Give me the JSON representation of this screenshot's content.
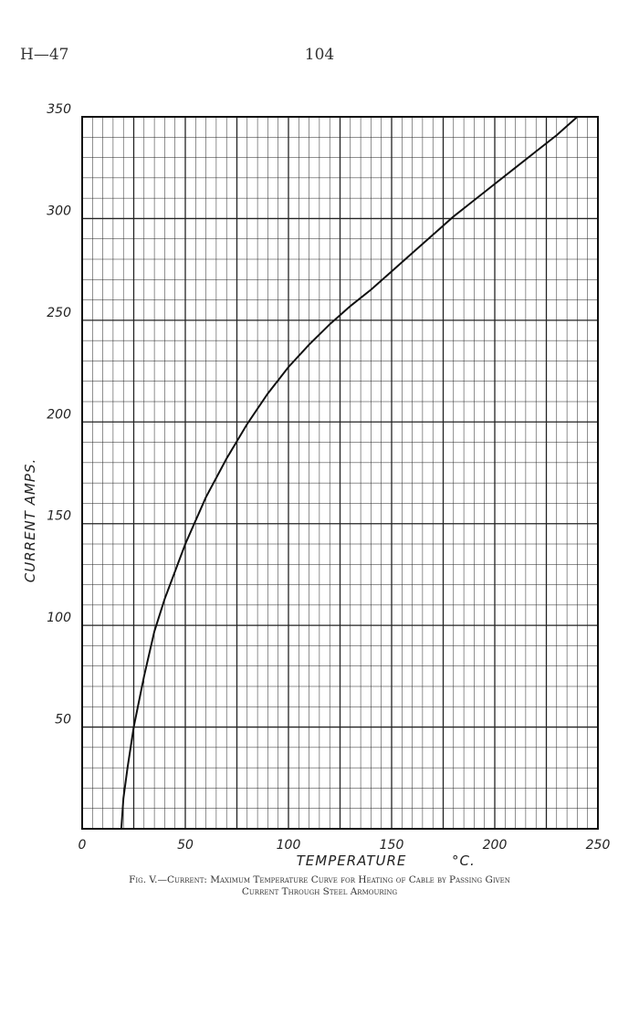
{
  "page": {
    "header_left": "H—47",
    "page_number": "104",
    "caption_line1": "Fig. V.—Current: Maximum Temperature Curve for Heating of Cable by Passing Given",
    "caption_line2": "Current Through Steel Armouring"
  },
  "chart_data": {
    "type": "line",
    "title": "",
    "xlabel": "TEMPERATURE",
    "xlabel_unit": "°C.",
    "ylabel": "CURRENT AMPS.",
    "xlim": [
      0,
      250
    ],
    "ylim": [
      0,
      350
    ],
    "x_ticks": [
      "0",
      "50",
      "100",
      "150",
      "200",
      "250"
    ],
    "y_ticks": [
      "50",
      "100",
      "150",
      "200",
      "250",
      "300",
      "350"
    ],
    "grid": true,
    "series": [
      {
        "values_x": [
          19,
          20,
          22,
          25,
          30,
          35,
          40,
          50,
          60,
          70,
          80,
          90,
          100,
          110,
          120,
          130,
          140,
          150,
          160,
          170,
          180,
          190,
          200,
          210,
          220,
          230,
          240
        ],
        "values_y": [
          0,
          15,
          30,
          50,
          75,
          97,
          113,
          140,
          163,
          182,
          199,
          214,
          227,
          238,
          248,
          257,
          265,
          274,
          283,
          292,
          301,
          309,
          317,
          325,
          333,
          341,
          350
        ]
      }
    ]
  }
}
